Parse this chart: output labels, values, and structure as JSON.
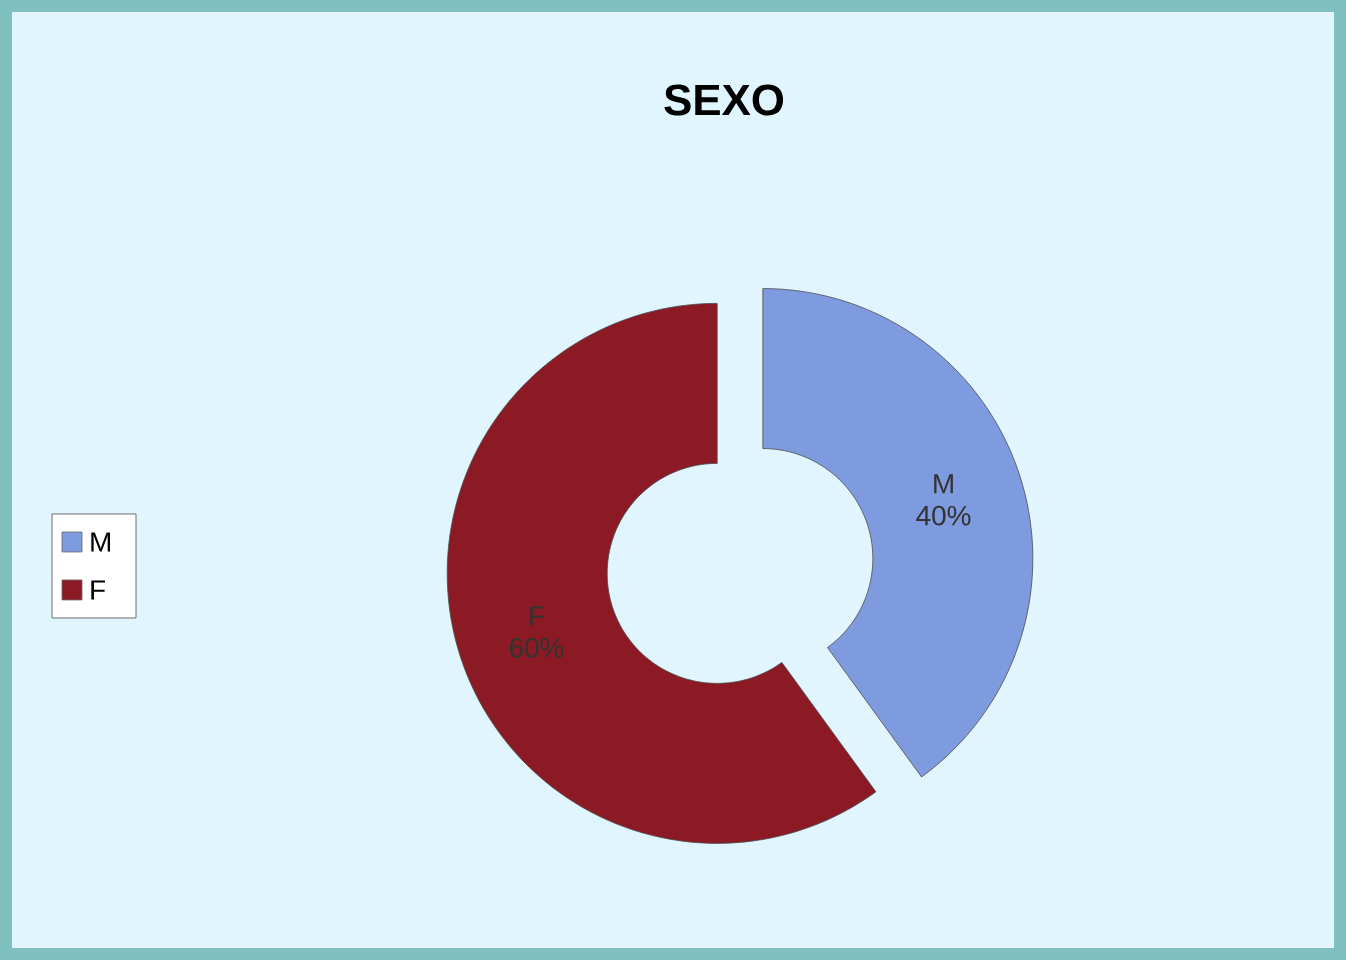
{
  "chart_data": {
    "type": "donut",
    "title": "SEXO",
    "categories": [
      "M",
      "F"
    ],
    "values": [
      40,
      60
    ],
    "value_labels": [
      "40%",
      "60%"
    ],
    "colors": [
      "#7f9be0",
      "#8b1a24"
    ],
    "legend": "left"
  }
}
